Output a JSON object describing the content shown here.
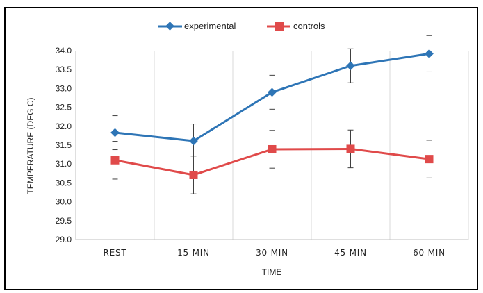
{
  "chart_data": {
    "type": "line",
    "title": "",
    "xlabel": "TIME",
    "ylabel": "TEMPERATURE (DEG C)",
    "categories": [
      "REST",
      "15 MIN",
      "30 MIN",
      "45 MIN",
      "60 MIN"
    ],
    "ylim": [
      29.0,
      34.0
    ],
    "yticks": [
      "29.0",
      "29.5",
      "30.0",
      "30.5",
      "31.0",
      "31.5",
      "32.0",
      "32.5",
      "33.0",
      "33.5",
      "34.0"
    ],
    "grid": "vertical",
    "legend": "top-center",
    "series": [
      {
        "name": "experimental",
        "color": "#2e75b6",
        "marker": "diamond",
        "values": [
          31.83,
          31.61,
          32.9,
          33.6,
          33.92
        ],
        "error": [
          0.45,
          0.45,
          0.45,
          0.45,
          0.48
        ]
      },
      {
        "name": "controls",
        "color": "#e04a4a",
        "marker": "square",
        "values": [
          31.1,
          30.71,
          31.39,
          31.4,
          31.13
        ],
        "error": [
          0.5,
          0.5,
          0.5,
          0.5,
          0.5
        ]
      }
    ]
  }
}
